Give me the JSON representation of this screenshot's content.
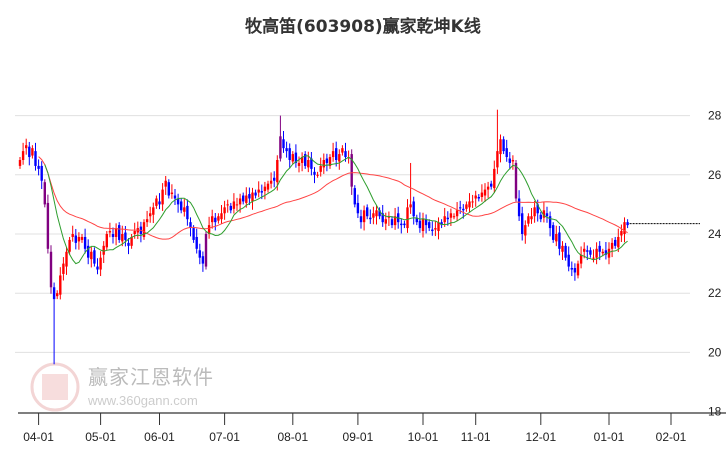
{
  "chart_data": {
    "type": "candlestick",
    "title": "牧高笛(603908)赢家乾坤K线",
    "ylim": [
      18,
      28.6
    ],
    "y_ticks": [
      18,
      20,
      22,
      24,
      26,
      28
    ],
    "x_ticks": [
      {
        "label": "04-01",
        "index": 6
      },
      {
        "label": "05-01",
        "index": 26
      },
      {
        "label": "06-01",
        "index": 45
      },
      {
        "label": "07-01",
        "index": 66
      },
      {
        "label": "08-01",
        "index": 88
      },
      {
        "label": "09-01",
        "index": 109
      },
      {
        "label": "10-01",
        "index": 130
      },
      {
        "label": "11-01",
        "index": 147
      },
      {
        "label": "12-01",
        "index": 168
      },
      {
        "label": "01-01",
        "index": 190
      },
      {
        "label": "02-01",
        "index": 210
      }
    ],
    "total_slots": 216,
    "closes": [
      26.5,
      26.8,
      27.0,
      26.6,
      26.9,
      26.3,
      26.2,
      25.8,
      25.0,
      23.5,
      22.2,
      21.8,
      22.0,
      22.6,
      23.0,
      23.4,
      23.8,
      24.0,
      23.7,
      23.9,
      23.9,
      23.5,
      23.2,
      23.4,
      23.0,
      22.8,
      23.2,
      23.6,
      24.0,
      24.1,
      23.9,
      24.2,
      23.8,
      24.0,
      23.8,
      23.6,
      23.9,
      24.1,
      24.2,
      24.0,
      24.4,
      24.5,
      24.7,
      24.9,
      25.2,
      25.0,
      25.5,
      25.8,
      25.3,
      25.4,
      25.2,
      25.0,
      24.8,
      24.9,
      24.5,
      24.2,
      23.8,
      23.5,
      23.2,
      23.0,
      24.0,
      24.3,
      24.6,
      24.4,
      24.6,
      24.7,
      24.9,
      25.0,
      24.8,
      25.1,
      25.0,
      25.2,
      25.1,
      25.3,
      25.2,
      25.4,
      25.3,
      25.5,
      25.4,
      25.6,
      25.7,
      25.8,
      25.8,
      26.5,
      27.3,
      26.9,
      26.8,
      26.5,
      26.7,
      26.4,
      26.4,
      26.6,
      26.3,
      26.5,
      26.2,
      26.0,
      26.0,
      26.3,
      26.5,
      26.4,
      26.6,
      26.8,
      26.5,
      26.7,
      26.9,
      26.6,
      26.6,
      25.6,
      25.0,
      24.7,
      24.4,
      24.8,
      24.6,
      24.5,
      24.7,
      24.8,
      24.6,
      24.4,
      24.5,
      24.6,
      24.3,
      24.6,
      24.4,
      24.3,
      24.3,
      24.9,
      25.0,
      24.6,
      24.4,
      24.2,
      24.5,
      24.3,
      24.2,
      24.1,
      24.2,
      24.4,
      24.3,
      24.6,
      24.5,
      24.7,
      24.6,
      24.8,
      24.9,
      24.8,
      25.0,
      25.1,
      25.1,
      25.3,
      25.2,
      25.4,
      25.5,
      25.6,
      25.6,
      26.2,
      26.8,
      27.2,
      26.8,
      26.6,
      26.4,
      26.5,
      25.2,
      24.6,
      24.0,
      24.3,
      24.6,
      24.6,
      24.9,
      24.7,
      24.5,
      24.8,
      24.6,
      24.2,
      23.8,
      24.0,
      23.5,
      23.6,
      23.2,
      22.9,
      22.8,
      22.7,
      23.0,
      23.3,
      23.5,
      23.4,
      23.3,
      23.2,
      23.5,
      23.4,
      23.4,
      23.3,
      23.5,
      23.7,
      23.6,
      23.9,
      24.1,
      24.4,
      24.3
    ],
    "extreme_lows": {
      "11": 19.6
    },
    "extreme_highs": {
      "84": 28.0,
      "126": 26.4,
      "154": 28.2
    },
    "ma_short_period": 10,
    "ma_long_period": 40,
    "last_price": 24.35,
    "colors": {
      "up": "#ff0000",
      "down": "#0000ff",
      "big_move": "#800080",
      "ma_short": "#2e9e2e",
      "ma_long": "#ff4444",
      "grid": "#e0e0e0"
    }
  },
  "watermark": {
    "logo_chars": [
      "江",
      "赢",
      "恩",
      "家"
    ],
    "name": "赢家江恩软件",
    "url": "www.360gann.com"
  }
}
